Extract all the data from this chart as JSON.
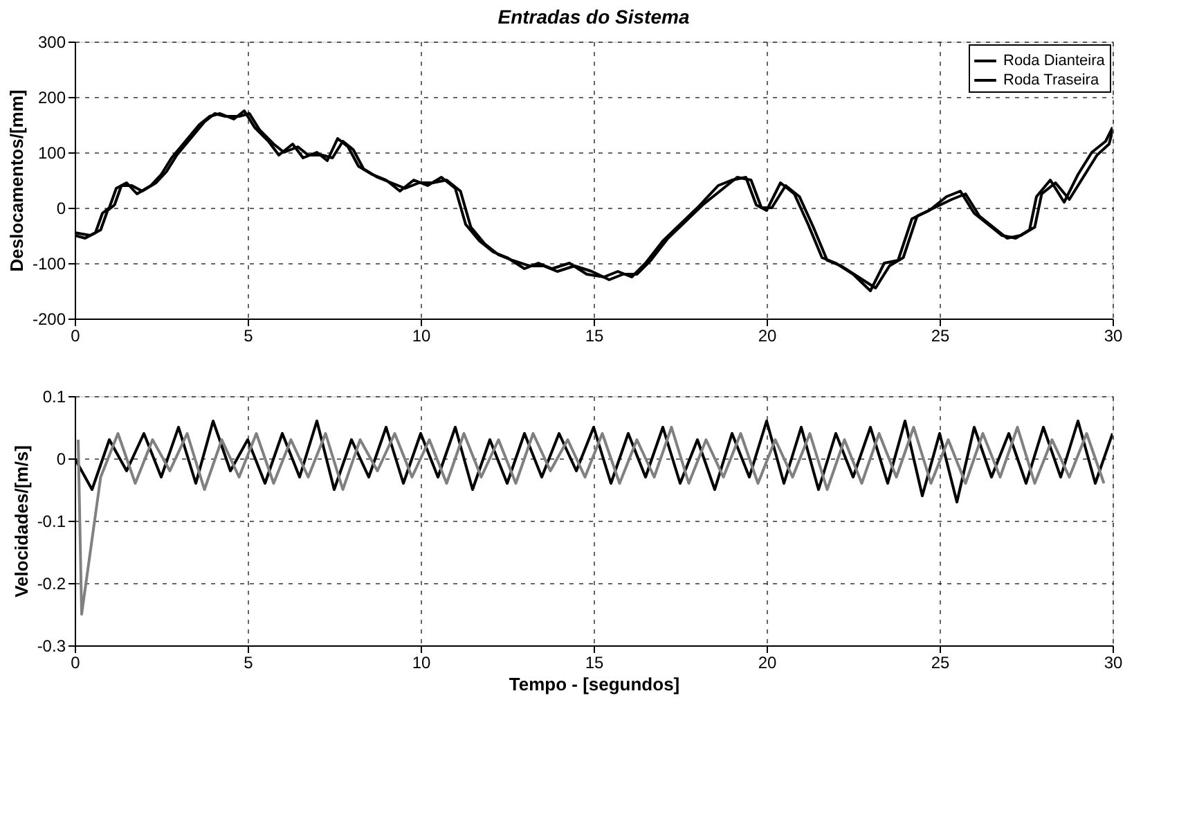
{
  "chart_data": [
    {
      "type": "line",
      "title": "Entradas do Sistema",
      "ylabel": "Deslocamentos/[mm]",
      "xlim": [
        0,
        30
      ],
      "xticks": [
        0,
        5,
        10,
        15,
        20,
        25,
        30
      ],
      "ylim": [
        -200,
        300
      ],
      "yticks": [
        -200,
        -100,
        0,
        100,
        200,
        300
      ],
      "grid": true,
      "legend": "top right",
      "line_style": "solid",
      "marker": "none",
      "series": [
        {
          "name": "Roda Dianteira",
          "color": "#000000",
          "x": [
            0,
            0.3,
            0.6,
            0.8,
            1.0,
            1.2,
            1.5,
            1.8,
            2.2,
            2.5,
            2.8,
            3.2,
            3.6,
            3.9,
            4.2,
            4.6,
            4.9,
            5.2,
            5.6,
            5.9,
            6.3,
            6.6,
            7.0,
            7.3,
            7.6,
            7.9,
            8.2,
            8.6,
            9.0,
            9.4,
            9.8,
            10.2,
            10.6,
            11.0,
            11.3,
            11.7,
            12.1,
            12.5,
            13.0,
            13.4,
            13.8,
            14.3,
            14.8,
            15.3,
            15.7,
            16.1,
            16.5,
            17.0,
            17.5,
            18.0,
            18.6,
            19.0,
            19.4,
            19.7,
            20.0,
            20.4,
            20.8,
            21.2,
            21.6,
            22.0,
            22.5,
            23.0,
            23.4,
            23.8,
            24.2,
            24.7,
            25.2,
            25.6,
            26.0,
            26.4,
            26.8,
            27.2,
            27.6,
            27.8,
            28.2,
            28.6,
            29.0,
            29.4,
            29.8,
            30.0
          ],
          "values": [
            -50,
            -55,
            -45,
            -10,
            0,
            35,
            45,
            25,
            40,
            60,
            90,
            120,
            150,
            165,
            170,
            160,
            175,
            145,
            120,
            95,
            115,
            90,
            100,
            85,
            125,
            110,
            75,
            60,
            50,
            30,
            50,
            40,
            55,
            35,
            -30,
            -60,
            -80,
            -90,
            -110,
            -100,
            -110,
            -100,
            -120,
            -125,
            -115,
            -125,
            -100,
            -60,
            -30,
            0,
            40,
            50,
            55,
            5,
            -5,
            45,
            25,
            -30,
            -90,
            -100,
            -120,
            -150,
            -100,
            -95,
            -20,
            -5,
            20,
            30,
            -10,
            -30,
            -50,
            -55,
            -40,
            20,
            50,
            10,
            60,
            100,
            120,
            145
          ]
        },
        {
          "name": "Roda Traseira",
          "color": "#000000",
          "x": [
            0,
            0.45,
            0.75,
            0.95,
            1.15,
            1.35,
            1.65,
            1.95,
            2.35,
            2.65,
            2.95,
            3.35,
            3.75,
            4.05,
            4.35,
            4.75,
            5.05,
            5.35,
            5.75,
            6.05,
            6.45,
            6.75,
            7.15,
            7.45,
            7.75,
            8.05,
            8.35,
            8.75,
            9.15,
            9.55,
            9.95,
            10.35,
            10.75,
            11.15,
            11.45,
            11.85,
            12.25,
            12.65,
            13.15,
            13.55,
            13.95,
            14.45,
            14.95,
            15.45,
            15.85,
            16.25,
            16.65,
            17.15,
            17.65,
            18.15,
            18.75,
            19.15,
            19.55,
            19.85,
            20.15,
            20.55,
            20.95,
            21.35,
            21.75,
            22.15,
            22.65,
            23.15,
            23.55,
            23.95,
            24.35,
            24.85,
            25.35,
            25.75,
            26.15,
            26.55,
            26.95,
            27.35,
            27.75,
            27.95,
            28.35,
            28.75,
            29.15,
            29.55,
            29.9,
            30.0
          ],
          "values": [
            -45,
            -50,
            -40,
            -5,
            5,
            40,
            40,
            30,
            45,
            65,
            95,
            125,
            155,
            170,
            165,
            165,
            170,
            140,
            115,
            100,
            110,
            95,
            95,
            90,
            120,
            105,
            70,
            55,
            45,
            35,
            45,
            45,
            50,
            30,
            -35,
            -65,
            -85,
            -95,
            -105,
            -105,
            -115,
            -105,
            -115,
            -130,
            -120,
            -120,
            -95,
            -55,
            -25,
            5,
            35,
            55,
            50,
            0,
            0,
            40,
            20,
            -35,
            -95,
            -105,
            -125,
            -145,
            -105,
            -90,
            -15,
            0,
            15,
            25,
            -15,
            -35,
            -55,
            -50,
            -35,
            25,
            45,
            15,
            55,
            95,
            115,
            140
          ]
        }
      ]
    },
    {
      "type": "line",
      "xlabel": "Tempo - [segundos]",
      "ylabel": "Velocidades/[m/s]",
      "xlim": [
        0,
        30
      ],
      "xticks": [
        0,
        5,
        10,
        15,
        20,
        25,
        30
      ],
      "ylim": [
        -0.3,
        0.1
      ],
      "yticks": [
        -0.3,
        -0.2,
        -0.1,
        0,
        0.1
      ],
      "grid": true,
      "legend": false,
      "line_style": "solid",
      "marker": "none",
      "series": [
        {
          "color": "#000000",
          "x": [
            0,
            0.5,
            1,
            1.5,
            2,
            2.5,
            3,
            3.5,
            4,
            4.5,
            5,
            5.5,
            6,
            6.5,
            7,
            7.5,
            8,
            8.5,
            9,
            9.5,
            10,
            10.5,
            11,
            11.5,
            12,
            12.5,
            13,
            13.5,
            14,
            14.5,
            15,
            15.5,
            16,
            16.5,
            17,
            17.5,
            18,
            18.5,
            19,
            19.5,
            20,
            20.5,
            21,
            21.5,
            22,
            22.5,
            23,
            23.5,
            24,
            24.5,
            25,
            25.5,
            26,
            26.5,
            27,
            27.5,
            28,
            28.5,
            29,
            29.5,
            30
          ],
          "values": [
            0,
            -0.05,
            0.03,
            -0.02,
            0.04,
            -0.03,
            0.05,
            -0.04,
            0.06,
            -0.02,
            0.03,
            -0.04,
            0.04,
            -0.03,
            0.06,
            -0.05,
            0.03,
            -0.03,
            0.05,
            -0.04,
            0.04,
            -0.03,
            0.05,
            -0.05,
            0.03,
            -0.04,
            0.04,
            -0.03,
            0.04,
            -0.02,
            0.05,
            -0.04,
            0.04,
            -0.03,
            0.05,
            -0.04,
            0.03,
            -0.05,
            0.04,
            -0.03,
            0.06,
            -0.04,
            0.05,
            -0.05,
            0.04,
            -0.03,
            0.05,
            -0.04,
            0.06,
            -0.06,
            0.04,
            -0.07,
            0.05,
            -0.03,
            0.04,
            -0.04,
            0.05,
            -0.03,
            0.06,
            -0.04,
            0.04
          ]
        },
        {
          "color": "#808080",
          "x": [
            0.1,
            0.2,
            0.75,
            1.25,
            1.75,
            2.25,
            2.75,
            3.25,
            3.75,
            4.25,
            4.75,
            5.25,
            5.75,
            6.25,
            6.75,
            7.25,
            7.75,
            8.25,
            8.75,
            9.25,
            9.75,
            10.25,
            10.75,
            11.25,
            11.75,
            12.25,
            12.75,
            13.25,
            13.75,
            14.25,
            14.75,
            15.25,
            15.75,
            16.25,
            16.75,
            17.25,
            17.75,
            18.25,
            18.75,
            19.25,
            19.75,
            20.25,
            20.75,
            21.25,
            21.75,
            22.25,
            22.75,
            23.25,
            23.75,
            24.25,
            24.75,
            25.25,
            25.75,
            26.25,
            26.75,
            27.25,
            27.75,
            28.25,
            28.75,
            29.25,
            29.75
          ],
          "values": [
            0.03,
            -0.25,
            -0.03,
            0.04,
            -0.04,
            0.03,
            -0.02,
            0.04,
            -0.05,
            0.03,
            -0.03,
            0.04,
            -0.04,
            0.03,
            -0.03,
            0.04,
            -0.05,
            0.03,
            -0.02,
            0.04,
            -0.03,
            0.03,
            -0.04,
            0.04,
            -0.03,
            0.03,
            -0.04,
            0.04,
            -0.02,
            0.03,
            -0.03,
            0.04,
            -0.04,
            0.03,
            -0.03,
            0.05,
            -0.04,
            0.03,
            -0.03,
            0.04,
            -0.04,
            0.03,
            -0.03,
            0.04,
            -0.05,
            0.03,
            -0.04,
            0.04,
            -0.03,
            0.05,
            -0.04,
            0.03,
            -0.04,
            0.04,
            -0.03,
            0.05,
            -0.04,
            0.03,
            -0.03,
            0.04,
            -0.04
          ]
        }
      ]
    }
  ]
}
